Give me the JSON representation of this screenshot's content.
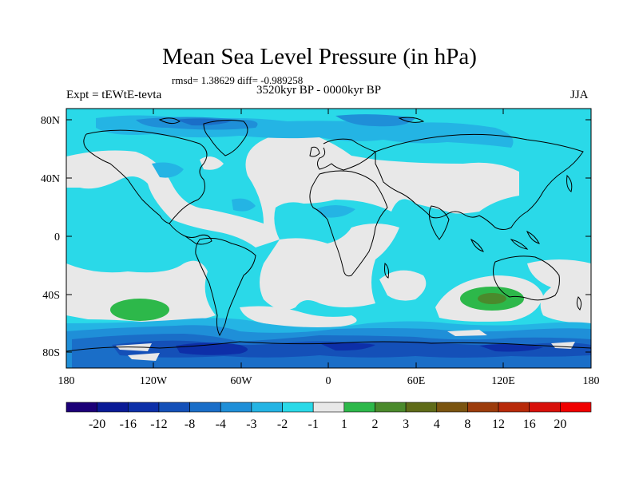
{
  "title": "Mean Sea Level Pressure (in hPa)",
  "stats_line": "rmsd= 1.38629 diff= -0.989258",
  "experiment": "Expt = tEWtE-tevta",
  "period": "3520kyr BP - 0000kyr BP",
  "season": "JJA",
  "lat_labels": [
    "80N",
    "40N",
    "0",
    "40S",
    "80S"
  ],
  "lon_labels": [
    "180",
    "120W",
    "60W",
    "0",
    "60E",
    "120E",
    "180"
  ],
  "colorbar": {
    "labels": [
      "-20",
      "-16",
      "-12",
      "-8",
      "-4",
      "-3",
      "-2",
      "-1",
      "1",
      "2",
      "3",
      "4",
      "8",
      "12",
      "16",
      "20"
    ],
    "colors": [
      "#1c0078",
      "#0a1a96",
      "#0d2fa8",
      "#1450b8",
      "#1a6ec8",
      "#1f8fd8",
      "#24b4e4",
      "#2ad9e8",
      "#e8e8e8",
      "#2db84a",
      "#4a8a2c",
      "#5f6b18",
      "#7a5410",
      "#9c3c0c",
      "#b82a0a",
      "#d8100a",
      "#f00000"
    ]
  }
}
